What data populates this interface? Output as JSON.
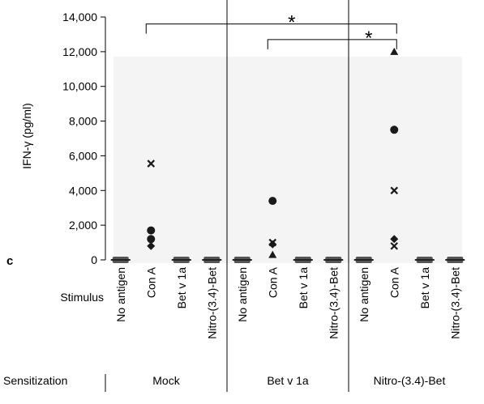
{
  "panel_label": "c",
  "chart_data": {
    "type": "scatter",
    "ylabel": "IFN-γ (pg/ml)",
    "ylim": [
      0,
      14000
    ],
    "yticks": [
      0,
      2000,
      4000,
      6000,
      8000,
      10000,
      12000,
      14000
    ],
    "ytick_labels": [
      "0",
      "2,000",
      "4,000",
      "6,000",
      "8,000",
      "10,000",
      "12,000",
      "14,000"
    ],
    "stimulus_row_label": "Stimulus",
    "sensitization_row_label": "Sensitization",
    "stimuli": [
      "No antigen",
      "Con A",
      "Bet v 1a",
      "Nitro-(3.4)-Bet"
    ],
    "groups": [
      {
        "name": "Mock",
        "points": [
          {
            "stimulus": "No antigen",
            "values": [
              0,
              0,
              0,
              0
            ]
          },
          {
            "stimulus": "Con A",
            "values": [
              5550,
              1700,
              1200,
              800
            ]
          },
          {
            "stimulus": "Bet v 1a",
            "values": [
              0,
              0,
              0,
              0
            ]
          },
          {
            "stimulus": "Nitro-(3.4)-Bet",
            "values": [
              0,
              0,
              0,
              0
            ]
          }
        ]
      },
      {
        "name": "Bet v 1a",
        "points": [
          {
            "stimulus": "No antigen",
            "values": [
              0,
              0,
              0,
              0
            ]
          },
          {
            "stimulus": "Con A",
            "values": [
              3400,
              1000,
              900,
              300
            ]
          },
          {
            "stimulus": "Bet v 1a",
            "values": [
              0,
              0,
              0,
              0
            ]
          },
          {
            "stimulus": "Nitro-(3.4)-Bet",
            "values": [
              0,
              0,
              0,
              0
            ]
          }
        ]
      },
      {
        "name": "Nitro-(3.4)-Bet",
        "points": [
          {
            "stimulus": "No antigen",
            "values": [
              0,
              0,
              0,
              0
            ]
          },
          {
            "stimulus": "Con A",
            "values": [
              12000,
              7500,
              4000,
              1200,
              800
            ]
          },
          {
            "stimulus": "Bet v 1a",
            "values": [
              0,
              0,
              0,
              0
            ]
          },
          {
            "stimulus": "Nitro-(3.4)-Bet",
            "values": [
              0,
              0,
              0,
              0
            ]
          }
        ]
      }
    ],
    "marker_shapes": [
      "x",
      "circle",
      "diamond",
      "triangle",
      "square"
    ],
    "significance": [
      {
        "from_group": "Mock",
        "to_group": "Nitro-(3.4)-Bet",
        "stimulus": "Con A",
        "label": "*"
      },
      {
        "from_group": "Bet v 1a",
        "to_group": "Nitro-(3.4)-Bet",
        "stimulus": "Con A",
        "label": "*"
      }
    ],
    "colors": {
      "markers": "#1a1a1a",
      "zero_markers": "#555555",
      "lines": "#000000"
    }
  }
}
